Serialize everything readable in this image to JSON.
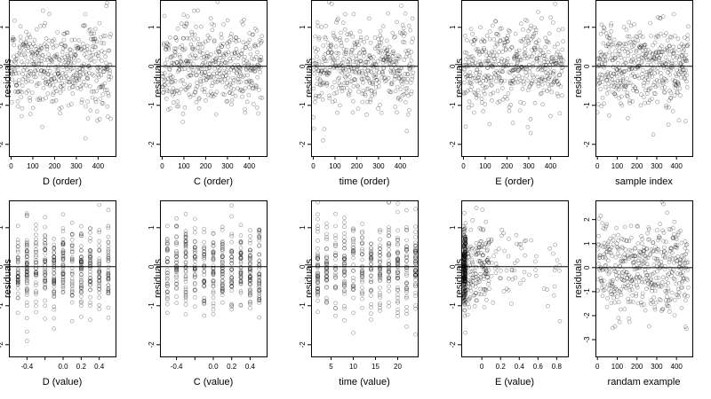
{
  "chart_data": [
    {
      "type": "scatter",
      "xlabel": "D (order)",
      "ylabel": "residuals",
      "xlim": [
        -10,
        480
      ],
      "ylim": [
        -2.3,
        1.7
      ],
      "xticks": [
        0,
        100,
        200,
        300,
        400
      ],
      "yticks": [
        -2,
        -1,
        0,
        1
      ],
      "hline": 0,
      "n_points": 460,
      "pattern": "index"
    },
    {
      "type": "scatter",
      "xlabel": "C (order)",
      "ylabel": "residuals",
      "xlim": [
        -10,
        480
      ],
      "ylim": [
        -2.3,
        1.7
      ],
      "xticks": [
        0,
        100,
        200,
        300,
        400
      ],
      "yticks": [
        -2,
        -1,
        0,
        1
      ],
      "hline": 0,
      "n_points": 460,
      "pattern": "index"
    },
    {
      "type": "scatter",
      "xlabel": "time (order)",
      "ylabel": "residuals",
      "xlim": [
        -10,
        480
      ],
      "ylim": [
        -2.3,
        1.7
      ],
      "xticks": [
        0,
        100,
        200,
        300,
        400
      ],
      "yticks": [
        -2,
        -1,
        0,
        1
      ],
      "hline": 0,
      "n_points": 460,
      "pattern": "index"
    },
    {
      "type": "scatter",
      "xlabel": "E (order)",
      "ylabel": "residuals",
      "xlim": [
        -10,
        480
      ],
      "ylim": [
        -2.3,
        1.7
      ],
      "xticks": [
        0,
        100,
        200,
        300,
        400
      ],
      "yticks": [
        -2,
        -1,
        0,
        1
      ],
      "hline": 0,
      "n_points": 460,
      "pattern": "index"
    },
    {
      "type": "scatter",
      "xlabel": "sample index",
      "ylabel": "residuals",
      "xlim": [
        -10,
        480
      ],
      "ylim": [
        -2.3,
        1.7
      ],
      "xticks": [
        0,
        100,
        200,
        300,
        400
      ],
      "yticks": [
        -2,
        -1,
        0,
        1
      ],
      "hline": 0,
      "n_points": 460,
      "pattern": "index"
    },
    {
      "type": "scatter",
      "xlabel": "D (value)",
      "ylabel": "residuals",
      "xlim": [
        -0.6,
        0.58
      ],
      "ylim": [
        -2.3,
        1.7
      ],
      "xticks": [
        -0.4,
        -0.2,
        0.0,
        0.2,
        0.4
      ],
      "xticklabels": [
        "-0.4",
        "",
        "0.0",
        "0.2",
        "0.4"
      ],
      "yticks": [
        -2,
        -1,
        0,
        1
      ],
      "hline": 0,
      "n_points": 460,
      "pattern": "discrete",
      "levels": [
        -0.5,
        -0.4,
        -0.3,
        -0.2,
        -0.1,
        0.0,
        0.1,
        0.2,
        0.3,
        0.4,
        0.5
      ]
    },
    {
      "type": "scatter",
      "xlabel": "C (value)",
      "ylabel": "residuals",
      "xlim": [
        -0.58,
        0.58
      ],
      "ylim": [
        -2.3,
        1.7
      ],
      "xticks": [
        -0.4,
        -0.2,
        0.0,
        0.2,
        0.4
      ],
      "xticklabels": [
        "-0.4",
        "",
        "0.0",
        "0.2",
        "0.4"
      ],
      "yticks": [
        -2,
        -1,
        0,
        1
      ],
      "hline": 0,
      "n_points": 460,
      "pattern": "discrete",
      "levels": [
        -0.5,
        -0.4,
        -0.3,
        -0.2,
        -0.1,
        0.0,
        0.1,
        0.2,
        0.3,
        0.4,
        0.5
      ]
    },
    {
      "type": "scatter",
      "xlabel": "time (value)",
      "ylabel": "residuals",
      "xlim": [
        0.5,
        24.5
      ],
      "ylim": [
        -2.3,
        1.7
      ],
      "xticks": [
        5,
        10,
        15,
        20
      ],
      "yticks": [
        -2,
        -1,
        0,
        1
      ],
      "hline": 0,
      "n_points": 460,
      "pattern": "discrete",
      "levels": [
        2,
        4,
        6,
        8,
        10,
        12,
        14,
        16,
        18,
        20,
        22,
        24
      ]
    },
    {
      "type": "scatter",
      "xlabel": "E (value)",
      "ylabel": "residuals",
      "xlim": [
        -0.22,
        0.92
      ],
      "ylim": [
        -2.3,
        1.7
      ],
      "xticks": [
        0.0,
        0.2,
        0.4,
        0.6,
        0.8
      ],
      "yticks": [
        -2,
        -1,
        0,
        1
      ],
      "hline": 0,
      "n_points": 460,
      "pattern": "skewed"
    },
    {
      "type": "scatter",
      "xlabel": "randam example",
      "ylabel": "residuals",
      "xlim": [
        -10,
        480
      ],
      "ylim": [
        -3.7,
        2.8
      ],
      "xticks": [
        0,
        100,
        200,
        300,
        400
      ],
      "yticks": [
        -3,
        -2,
        -1,
        0,
        1,
        2
      ],
      "hline": 0,
      "n_points": 460,
      "pattern": "random"
    }
  ]
}
